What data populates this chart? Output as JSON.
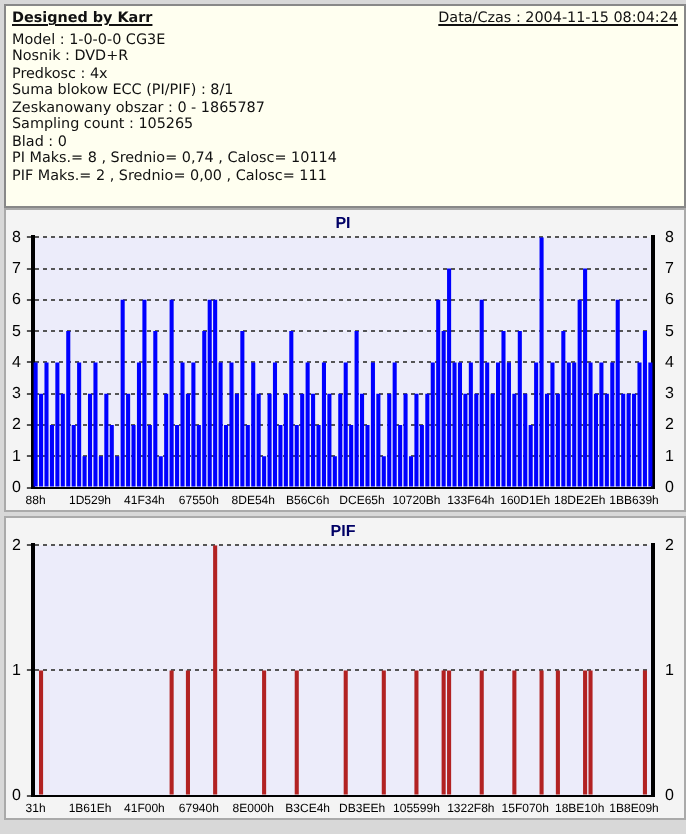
{
  "chart_data": [
    {
      "type": "other",
      "title": "Designed by Karr",
      "annotations": [
        "Data/Czas : 2004-11-15 08:04:24",
        "Model : 1-0-0-0 CG3E",
        "Nosnik : DVD+R",
        "Predkosc : 4x",
        "Suma blokow ECC (PI/PIF) : 8/1",
        "Zeskanowany obszar : 0 - 1865787",
        "Sampling count : 105265",
        "Blad : 0",
        "PI Maks.= 8 , Srednio= 0,74 , Calosc= 10114",
        "PIF Maks.= 2 , Srednio= 0,00 , Calosc= 111"
      ]
    },
    {
      "type": "bar",
      "title": "PI",
      "categories": [
        "88h",
        null,
        null,
        null,
        null,
        null,
        null,
        null,
        null,
        null,
        "1D529h",
        null,
        null,
        null,
        null,
        null,
        null,
        null,
        null,
        null,
        "41F34h",
        null,
        null,
        null,
        null,
        null,
        null,
        null,
        null,
        null,
        "67550h",
        null,
        null,
        null,
        null,
        null,
        null,
        null,
        null,
        null,
        "8DE54h",
        null,
        null,
        null,
        null,
        null,
        null,
        null,
        null,
        null,
        "B56C6h",
        null,
        null,
        null,
        null,
        null,
        null,
        null,
        null,
        null,
        "DCE65h",
        null,
        null,
        null,
        null,
        null,
        null,
        null,
        null,
        null,
        "10720Bh",
        null,
        null,
        null,
        null,
        null,
        null,
        null,
        null,
        null,
        "133F64h",
        null,
        null,
        null,
        null,
        null,
        null,
        null,
        null,
        null,
        "160D1Eh",
        null,
        null,
        null,
        null,
        null,
        null,
        null,
        null,
        null,
        "18DE2Eh",
        null,
        null,
        null,
        null,
        null,
        null,
        null,
        null,
        null,
        "1BB639h",
        null,
        null,
        null
      ],
      "series": [
        {
          "color": "#0000ff",
          "values": [
            4,
            3,
            4,
            2,
            4,
            3,
            5,
            2,
            4,
            1,
            3,
            4,
            1,
            3,
            2,
            1,
            6,
            3,
            2,
            4,
            6,
            2,
            5,
            1,
            3,
            6,
            2,
            4,
            3,
            4,
            2,
            5,
            6,
            6,
            4,
            2,
            4,
            3,
            5,
            2,
            4,
            3,
            1,
            3,
            4,
            2,
            3,
            5,
            2,
            3,
            4,
            3,
            2,
            4,
            3,
            1,
            3,
            4,
            2,
            5,
            3,
            2,
            4,
            3,
            1,
            3,
            4,
            2,
            3,
            1,
            3,
            2,
            3,
            4,
            6,
            5,
            7,
            4,
            4,
            3,
            4,
            3,
            6,
            4,
            3,
            4,
            5,
            4,
            3,
            5,
            3,
            2,
            4,
            8,
            3,
            4,
            3,
            5,
            4,
            4,
            6,
            7,
            4,
            3,
            4,
            3,
            4,
            6,
            3,
            3,
            3,
            4,
            5,
            4
          ]
        }
      ],
      "ylim": [
        0,
        8
      ],
      "yticks": [
        0,
        1,
        2,
        3,
        4,
        5,
        6,
        7,
        8
      ],
      "y2lim": [
        0,
        8
      ],
      "y2ticks": [
        0,
        1,
        2,
        3,
        4,
        5,
        6,
        7,
        8
      ],
      "grid": "y",
      "legend": false
    },
    {
      "type": "bar",
      "title": "PIF",
      "categories": [
        "31h",
        null,
        null,
        null,
        null,
        null,
        null,
        null,
        null,
        null,
        "1B61Eh",
        null,
        null,
        null,
        null,
        null,
        null,
        null,
        null,
        null,
        "41F00h",
        null,
        null,
        null,
        null,
        null,
        null,
        null,
        null,
        null,
        "67940h",
        null,
        null,
        null,
        null,
        null,
        null,
        null,
        null,
        null,
        "8E000h",
        null,
        null,
        null,
        null,
        null,
        null,
        null,
        null,
        null,
        "B3CE4h",
        null,
        null,
        null,
        null,
        null,
        null,
        null,
        null,
        null,
        "DB3EEh",
        null,
        null,
        null,
        null,
        null,
        null,
        null,
        null,
        null,
        "105599h",
        null,
        null,
        null,
        null,
        null,
        null,
        null,
        null,
        null,
        "1322F8h",
        null,
        null,
        null,
        null,
        null,
        null,
        null,
        null,
        null,
        "15F070h",
        null,
        null,
        null,
        null,
        null,
        null,
        null,
        null,
        null,
        "18BE10h",
        null,
        null,
        null,
        null,
        null,
        null,
        null,
        null,
        null,
        "1B8E09h",
        null,
        null,
        null
      ],
      "series": [
        {
          "color": "#b22222",
          "values": [
            0,
            1,
            0,
            0,
            0,
            0,
            0,
            0,
            0,
            0,
            0,
            0,
            0,
            0,
            0,
            0,
            0,
            0,
            0,
            0,
            0,
            0,
            0,
            0,
            0,
            1,
            0,
            0,
            1,
            0,
            0,
            0,
            0,
            2,
            0,
            0,
            0,
            0,
            0,
            0,
            0,
            0,
            1,
            0,
            0,
            0,
            0,
            0,
            1,
            0,
            0,
            0,
            0,
            0,
            0,
            0,
            0,
            1,
            0,
            0,
            0,
            0,
            0,
            0,
            1,
            0,
            0,
            0,
            0,
            0,
            1,
            0,
            0,
            0,
            0,
            1,
            1,
            0,
            0,
            0,
            0,
            0,
            1,
            0,
            0,
            0,
            0,
            0,
            1,
            0,
            0,
            0,
            0,
            1,
            0,
            0,
            1,
            0,
            0,
            0,
            0,
            1,
            1,
            0,
            0,
            0,
            0,
            0,
            0,
            0,
            0,
            0,
            1,
            0
          ]
        }
      ],
      "ylim": [
        0,
        2
      ],
      "yticks": [
        0,
        1,
        2
      ],
      "y2lim": [
        0,
        2
      ],
      "y2ticks": [
        0,
        1,
        2
      ],
      "grid": "y",
      "legend": false
    }
  ]
}
